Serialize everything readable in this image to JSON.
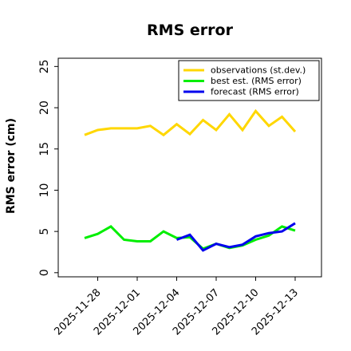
{
  "chart_data": {
    "type": "line",
    "title": "RMS error",
    "ylabel": "RMS error (cm)",
    "xlabel": "",
    "ylim": [
      -0.5,
      26
    ],
    "yticks": [
      0,
      5,
      10,
      15,
      20,
      25
    ],
    "xlim": [
      "2025-11-25",
      "2025-12-15"
    ],
    "xtick_labels": [
      "2025-11-28",
      "2025-12-01",
      "2025-12-04",
      "2025-12-07",
      "2025-12-10",
      "2025-12-13"
    ],
    "xtick_highlight": "2025-12-04",
    "xtick_highlight_color": "#228B22",
    "grid": false,
    "legend_position": "top-right",
    "series": [
      {
        "name": "observations (st.dev.)",
        "color": "#FFD700",
        "x": [
          "2025-11-27",
          "2025-11-28",
          "2025-11-29",
          "2025-11-30",
          "2025-12-01",
          "2025-12-02",
          "2025-12-03",
          "2025-12-04",
          "2025-12-05",
          "2025-12-06",
          "2025-12-07",
          "2025-12-08",
          "2025-12-09",
          "2025-12-10",
          "2025-12-11",
          "2025-12-12",
          "2025-12-13"
        ],
        "values": [
          16.7,
          17.3,
          17.5,
          17.5,
          17.5,
          17.8,
          16.7,
          18.0,
          16.8,
          18.5,
          17.3,
          19.2,
          17.3,
          19.6,
          17.8,
          18.9,
          17.1
        ]
      },
      {
        "name": "best est. (RMS error)",
        "color": "#00EE00",
        "x": [
          "2025-11-27",
          "2025-11-28",
          "2025-11-29",
          "2025-11-30",
          "2025-12-01",
          "2025-12-02",
          "2025-12-03",
          "2025-12-04",
          "2025-12-05",
          "2025-12-06",
          "2025-12-07",
          "2025-12-08",
          "2025-12-09",
          "2025-12-10",
          "2025-12-11",
          "2025-12-12",
          "2025-12-13"
        ],
        "values": [
          4.2,
          4.7,
          5.6,
          4.0,
          3.8,
          3.8,
          5.0,
          4.2,
          4.3,
          2.9,
          3.5,
          3.0,
          3.3,
          4.0,
          4.5,
          5.6,
          5.1
        ]
      },
      {
        "name": "forecast (RMS error)",
        "color": "#0000EE",
        "x": [
          "2025-12-04",
          "2025-12-05",
          "2025-12-06",
          "2025-12-07",
          "2025-12-08",
          "2025-12-09",
          "2025-12-10",
          "2025-12-11",
          "2025-12-12",
          "2025-12-13"
        ],
        "values": [
          4.0,
          4.6,
          2.7,
          3.5,
          3.1,
          3.4,
          4.4,
          4.8,
          5.0,
          6.0
        ]
      }
    ]
  }
}
